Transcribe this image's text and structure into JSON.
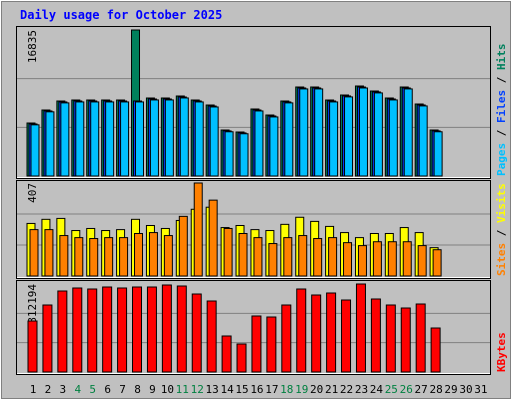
{
  "chart_data": {
    "type": "bar",
    "title": "Daily usage for October 2025",
    "categories": [
      "1",
      "2",
      "3",
      "4",
      "5",
      "6",
      "7",
      "8",
      "9",
      "10",
      "11",
      "12",
      "13",
      "14",
      "15",
      "16",
      "17",
      "18",
      "19",
      "20",
      "21",
      "22",
      "23",
      "24",
      "25",
      "26",
      "27",
      "28",
      "29",
      "30",
      "31"
    ],
    "category_colors": [
      "#000000",
      "#000000",
      "#000000",
      "#008040",
      "#008040",
      "#000000",
      "#000000",
      "#000000",
      "#000000",
      "#000000",
      "#008040",
      "#008040",
      "#000000",
      "#000000",
      "#000000",
      "#000000",
      "#000000",
      "#008040",
      "#008040",
      "#000000",
      "#000000",
      "#000000",
      "#000000",
      "#000000",
      "#008040",
      "#008040",
      "#000000",
      "#000000",
      "#000000",
      "#000000",
      "#000000"
    ],
    "label_separator": " / ",
    "panels": [
      {
        "ylim": [
          0,
          16835
        ],
        "yticks": [
          16835
        ],
        "series": [
          {
            "name": "Hits",
            "color": "#00805c",
            "values": [
              6111,
              7610,
              8648,
              8763,
              8763,
              8763,
              8763,
              16835,
              8994,
              8994,
              9225,
              8763,
              8187,
              5304,
              5074,
              7726,
              7034,
              8648,
              10262,
              10262,
              8763,
              9340,
              10378,
              9801,
              8994,
              10262,
              8302,
              5304,
              null,
              null,
              null
            ]
          },
          {
            "name": "Files",
            "color": "#0040ff",
            "values": [
              6000,
              7500,
              8540,
              8650,
              8650,
              8650,
              8650,
              8648,
              8880,
              8880,
              9110,
              8650,
              8070,
              5200,
              4970,
              7610,
              6920,
              8540,
              10150,
              10150,
              8650,
              9230,
              10260,
              9690,
              8880,
              10150,
              8190,
              5200,
              null,
              null,
              null
            ]
          },
          {
            "name": "Pages",
            "color": "#00c0ff",
            "values": [
              5900,
              7400,
              8430,
              8540,
              8540,
              8540,
              8540,
              8540,
              8770,
              8770,
              9000,
              8540,
              7960,
              5100,
              4870,
              7500,
              6810,
              8430,
              10040,
              10040,
              8540,
              9120,
              10150,
              9580,
              8770,
              10040,
              8080,
              5100,
              null,
              null,
              null
            ]
          }
        ]
      },
      {
        "ylim": [
          0,
          407
        ],
        "yticks": [
          407
        ],
        "series": [
          {
            "name": "Visits",
            "color": "#ffff00",
            "values": [
              230,
              248,
              252,
              199,
              208,
              199,
              203,
              248,
              221,
              208,
              243,
              292,
              301,
              212,
              221,
              203,
              199,
              226,
              257,
              239,
              217,
              190,
              168,
              186,
              186,
              212,
              190,
              124,
              null,
              null,
              null
            ]
          },
          {
            "name": "Sites",
            "color": "#ff8000",
            "values": [
              203,
              203,
              177,
              168,
              164,
              168,
              168,
              186,
              190,
              177,
              261,
              407,
              332,
              208,
              186,
              168,
              142,
              168,
              177,
              164,
              168,
              146,
              133,
              150,
              150,
              150,
              133,
              115,
              null,
              null,
              null
            ]
          }
        ]
      },
      {
        "ylim": [
          0,
          812194
        ],
        "yticks": [
          812194
        ],
        "series": [
          {
            "name": "KBytes",
            "color": "#ff0000",
            "values": [
              470700,
              618400,
              747600,
              775300,
              766000,
              784500,
              775300,
              784500,
              784500,
              803000,
              793700,
              719900,
              655300,
              332300,
              258400,
              516900,
              507600,
              618400,
              766000,
              710700,
              729100,
              664500,
              812194,
              673800,
              618400,
              590700,
              627600,
              406100,
              null,
              null,
              null
            ]
          }
        ]
      }
    ]
  }
}
